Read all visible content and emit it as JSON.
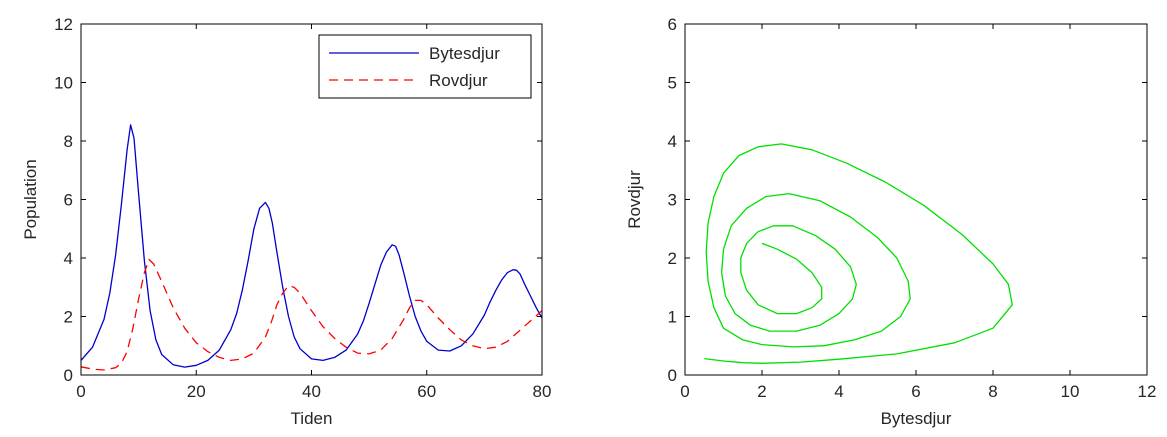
{
  "chart_data": [
    {
      "type": "line",
      "title": "",
      "xlabel": "Tiden",
      "ylabel": "Population",
      "xlim": [
        0,
        80
      ],
      "ylim": [
        0,
        12
      ],
      "xticks": [
        0,
        20,
        40,
        60,
        80
      ],
      "yticks": [
        0,
        2,
        4,
        6,
        8,
        10,
        12
      ],
      "grid": false,
      "legend": "top-right",
      "series": [
        {
          "name": "Bytesdjur",
          "color": "#0000cc",
          "style": "solid",
          "x": [
            0,
            2,
            4,
            5,
            6,
            7,
            8,
            8.6,
            9.2,
            10,
            11,
            12,
            13,
            14,
            16,
            18,
            20,
            22,
            24,
            26,
            27,
            28,
            29,
            30,
            31,
            32,
            32.6,
            33.2,
            34,
            35,
            36,
            37,
            38,
            40,
            42,
            44,
            46,
            48,
            49,
            50,
            51,
            52,
            53,
            54,
            54.6,
            55.2,
            56,
            57,
            58,
            59,
            60,
            62,
            64,
            66,
            68,
            70,
            71,
            72,
            73,
            74,
            75,
            75.6,
            76.2,
            77,
            78,
            79,
            80
          ],
          "y": [
            0.5,
            0.95,
            1.9,
            2.8,
            4.1,
            5.8,
            7.7,
            8.55,
            8.1,
            6.2,
            3.9,
            2.2,
            1.2,
            0.7,
            0.35,
            0.27,
            0.33,
            0.5,
            0.85,
            1.55,
            2.1,
            2.9,
            3.9,
            5.0,
            5.7,
            5.9,
            5.7,
            5.2,
            4.2,
            3.0,
            2.0,
            1.3,
            0.9,
            0.55,
            0.5,
            0.6,
            0.85,
            1.4,
            1.85,
            2.45,
            3.1,
            3.75,
            4.2,
            4.45,
            4.4,
            4.1,
            3.5,
            2.7,
            2.0,
            1.5,
            1.15,
            0.85,
            0.82,
            1.0,
            1.4,
            2.05,
            2.5,
            2.9,
            3.25,
            3.5,
            3.6,
            3.58,
            3.45,
            3.1,
            2.7,
            2.3,
            1.95
          ]
        },
        {
          "name": "Rovdjur",
          "color": "#ff0000",
          "style": "dashed",
          "x": [
            0,
            2,
            4,
            6,
            7,
            8,
            9,
            10,
            11,
            11.8,
            12.6,
            14,
            16,
            18,
            20,
            22,
            24,
            26,
            28,
            30,
            32,
            33,
            34,
            35,
            36,
            37,
            38,
            40,
            42,
            44,
            46,
            48,
            50,
            52,
            54,
            56,
            57,
            58,
            59,
            60,
            62,
            64,
            66,
            68,
            70,
            72,
            74,
            76,
            78,
            80
          ],
          "y": [
            0.28,
            0.2,
            0.17,
            0.25,
            0.4,
            0.8,
            1.6,
            2.6,
            3.5,
            3.95,
            3.8,
            3.2,
            2.3,
            1.6,
            1.1,
            0.8,
            0.6,
            0.5,
            0.55,
            0.75,
            1.3,
            1.8,
            2.4,
            2.8,
            3.05,
            3.0,
            2.8,
            2.2,
            1.65,
            1.25,
            0.95,
            0.75,
            0.72,
            0.85,
            1.25,
            1.9,
            2.3,
            2.55,
            2.55,
            2.4,
            1.95,
            1.55,
            1.2,
            1.0,
            0.9,
            0.95,
            1.15,
            1.5,
            1.85,
            2.2
          ]
        }
      ]
    },
    {
      "type": "line",
      "title": "",
      "xlabel": "Bytesdjur",
      "ylabel": "Rovdjur",
      "xlim": [
        0,
        12
      ],
      "ylim": [
        0,
        6
      ],
      "xticks": [
        0,
        2,
        4,
        6,
        8,
        10,
        12
      ],
      "yticks": [
        0,
        1,
        2,
        3,
        4,
        5,
        6
      ],
      "grid": false,
      "legend": "none",
      "series": [
        {
          "color": "#00e000",
          "style": "solid",
          "x": [
            0.5,
            1.0,
            1.5,
            2.0,
            3.0,
            4.0,
            5.5,
            7.0,
            8.0,
            8.5,
            8.4,
            8.0,
            7.2,
            6.2,
            5.2,
            4.2,
            3.3,
            2.5,
            1.9,
            1.4,
            1.0,
            0.75,
            0.6,
            0.55,
            0.6,
            0.75,
            1.0,
            1.5,
            2.0,
            2.8,
            3.6,
            4.4,
            5.1,
            5.6,
            5.85,
            5.8,
            5.5,
            5.0,
            4.3,
            3.5,
            2.7,
            2.1,
            1.6,
            1.2,
            1.0,
            0.95,
            1.05,
            1.3,
            1.7,
            2.2,
            2.9,
            3.5,
            4.0,
            4.35,
            4.45,
            4.3,
            3.9,
            3.4,
            2.8,
            2.3,
            1.9,
            1.6,
            1.45,
            1.45,
            1.6,
            1.9,
            2.4,
            2.9,
            3.3,
            3.55,
            3.55,
            3.3,
            2.9,
            2.4,
            2.0
          ],
          "y": [
            0.28,
            0.24,
            0.21,
            0.2,
            0.22,
            0.27,
            0.36,
            0.55,
            0.8,
            1.2,
            1.55,
            1.9,
            2.4,
            2.9,
            3.3,
            3.62,
            3.85,
            3.95,
            3.9,
            3.75,
            3.45,
            3.05,
            2.6,
            2.1,
            1.6,
            1.15,
            0.8,
            0.6,
            0.52,
            0.48,
            0.5,
            0.6,
            0.75,
            1.0,
            1.3,
            1.6,
            2.0,
            2.35,
            2.7,
            2.98,
            3.1,
            3.05,
            2.85,
            2.55,
            2.15,
            1.75,
            1.35,
            1.05,
            0.85,
            0.75,
            0.75,
            0.85,
            1.05,
            1.3,
            1.55,
            1.85,
            2.15,
            2.38,
            2.55,
            2.55,
            2.45,
            2.25,
            2.0,
            1.75,
            1.45,
            1.2,
            1.05,
            1.05,
            1.15,
            1.3,
            1.5,
            1.75,
            1.98,
            2.15,
            2.25
          ]
        }
      ]
    }
  ]
}
